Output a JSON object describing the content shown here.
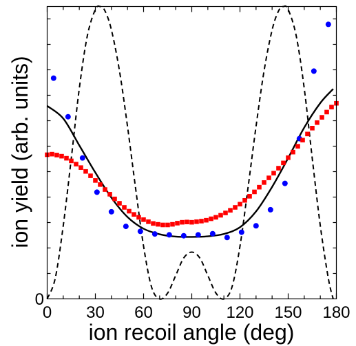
{
  "chart_data": {
    "type": "scatter",
    "title": "",
    "xlabel": "ion recoil angle (deg)",
    "ylabel": "ion yield (arb. units)",
    "xlim": [
      0,
      180
    ],
    "ylim": [
      0,
      1
    ],
    "x_tick_labels": [
      "0",
      "30",
      "60",
      "90",
      "120",
      "150",
      "180"
    ],
    "y_tick_labels": [
      "0"
    ],
    "grid": false,
    "legend": "none",
    "series": [
      {
        "marker": "circle",
        "color": "#0000ff",
        "x": [
          4,
          13,
          22,
          31,
          40,
          49,
          58,
          67,
          76,
          85,
          94,
          103,
          112,
          121,
          130,
          139,
          148,
          157,
          166,
          175
        ],
        "y": [
          0.755,
          0.623,
          0.482,
          0.365,
          0.298,
          0.248,
          0.231,
          0.222,
          0.219,
          0.216,
          0.219,
          0.223,
          0.21,
          0.228,
          0.25,
          0.305,
          0.395,
          0.548,
          0.779,
          0.939
        ]
      },
      {
        "marker": "square",
        "color": "#ff0000",
        "x": [
          0,
          3,
          6,
          9,
          12,
          15,
          18,
          21,
          24,
          27,
          30,
          33,
          36,
          39,
          42,
          45,
          48,
          51,
          54,
          57,
          60,
          63,
          66,
          69,
          72,
          75,
          78,
          81,
          84,
          87,
          90,
          93,
          96,
          99,
          102,
          105,
          108,
          111,
          114,
          117,
          120,
          123,
          126,
          129,
          132,
          135,
          138,
          141,
          144,
          147,
          150,
          153,
          156,
          159,
          162,
          165,
          168,
          171,
          174,
          177,
          180
        ],
        "y": [
          0.493,
          0.495,
          0.492,
          0.488,
          0.481,
          0.472,
          0.461,
          0.449,
          0.436,
          0.421,
          0.405,
          0.391,
          0.374,
          0.358,
          0.342,
          0.327,
          0.313,
          0.3,
          0.289,
          0.279,
          0.271,
          0.264,
          0.258,
          0.255,
          0.253,
          0.253,
          0.255,
          0.259,
          0.262,
          0.263,
          0.262,
          0.264,
          0.266,
          0.269,
          0.274,
          0.279,
          0.286,
          0.294,
          0.303,
          0.313,
          0.324,
          0.337,
          0.351,
          0.366,
          0.382,
          0.398,
          0.414,
          0.43,
          0.447,
          0.465,
          0.483,
          0.502,
          0.522,
          0.543,
          0.564,
          0.584,
          0.603,
          0.621,
          0.639,
          0.656,
          0.669
        ]
      },
      {
        "style": "solid-line",
        "color": "#000000",
        "x": [
          0,
          10,
          20,
          30,
          40,
          50,
          60,
          70,
          80,
          90,
          100,
          110,
          120,
          130,
          140,
          150,
          160,
          170,
          178
        ],
        "y": [
          0.66,
          0.617,
          0.525,
          0.432,
          0.346,
          0.28,
          0.24,
          0.221,
          0.213,
          0.212,
          0.214,
          0.222,
          0.245,
          0.299,
          0.383,
          0.482,
          0.586,
          0.67,
          0.718
        ]
      },
      {
        "style": "dashed-line",
        "color": "#000000",
        "x": [
          0,
          5,
          10,
          15,
          20,
          25,
          30,
          33,
          36,
          40,
          45,
          50,
          55,
          60,
          65,
          70,
          75,
          80,
          85,
          90,
          95,
          100,
          105,
          110,
          115,
          120,
          125,
          130,
          135,
          140,
          144,
          147,
          150,
          155,
          160,
          165,
          170,
          175,
          178
        ],
        "y": [
          0.0,
          0.07,
          0.25,
          0.48,
          0.72,
          0.9,
          0.99,
          1.0,
          0.985,
          0.92,
          0.78,
          0.59,
          0.38,
          0.18,
          0.04,
          0.0,
          0.02,
          0.08,
          0.14,
          0.16,
          0.14,
          0.08,
          0.02,
          0.0,
          0.04,
          0.18,
          0.38,
          0.59,
          0.78,
          0.92,
          0.985,
          1.0,
          0.99,
          0.9,
          0.72,
          0.48,
          0.25,
          0.07,
          0.0
        ]
      }
    ]
  }
}
